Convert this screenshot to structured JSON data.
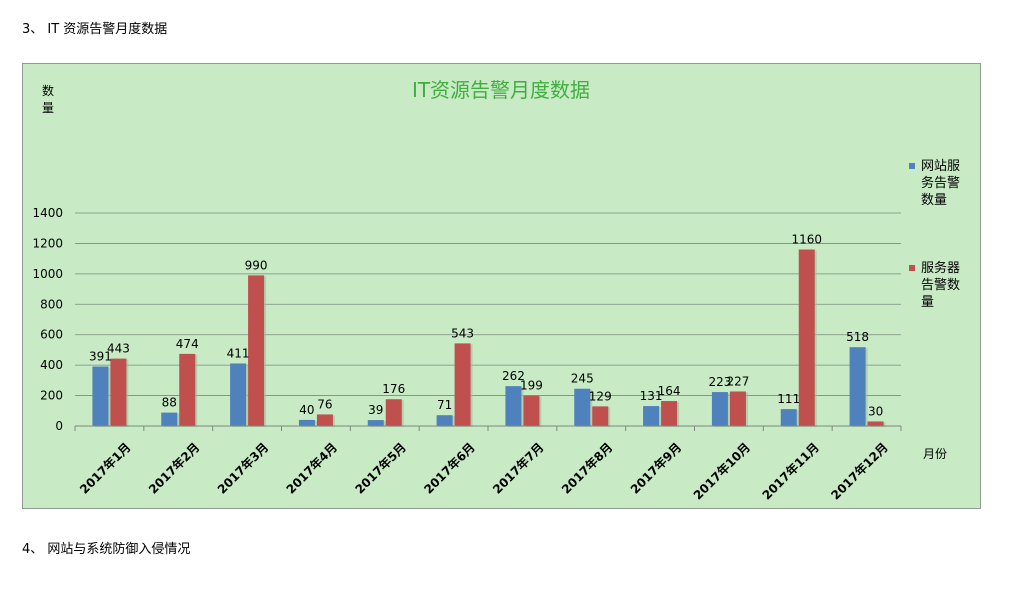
{
  "document": {
    "heading_3": "3、 IT 资源告警月度数据",
    "heading_4": "4、 网站与系统防御入侵情况"
  },
  "colors": {
    "background": "#c8ebc6",
    "title": "#3fae3f",
    "series_website": "#4f81bd",
    "series_server": "#c0504d"
  },
  "chart_data": {
    "type": "bar",
    "title": "IT资源告警月度数据",
    "ylabel_chars": [
      "数",
      "量"
    ],
    "xlabel": "月份",
    "ylim": [
      0,
      1400
    ],
    "yticks": [
      0,
      200,
      400,
      600,
      800,
      1000,
      1200,
      1400
    ],
    "grid": true,
    "legend_position": "right",
    "categories": [
      "2017年1月",
      "2017年2月",
      "2017年3月",
      "2017年4月",
      "2017年5月",
      "2017年6月",
      "2017年7月",
      "2017年8月",
      "2017年9月",
      "2017年10月",
      "2017年11月",
      "2017年12月"
    ],
    "series": [
      {
        "name": "网站服务告警数量",
        "legend_lines": [
          "网站服",
          "务告警",
          "数量"
        ],
        "color": "#4f81bd",
        "values": [
          391,
          88,
          411,
          40,
          39,
          71,
          262,
          245,
          131,
          223,
          111,
          518
        ]
      },
      {
        "name": "服务器告警数量",
        "legend_lines": [
          "服务器",
          "告警数",
          "量"
        ],
        "color": "#c0504d",
        "values": [
          443,
          474,
          990,
          76,
          176,
          543,
          199,
          129,
          164,
          227,
          1160,
          30
        ]
      }
    ]
  }
}
